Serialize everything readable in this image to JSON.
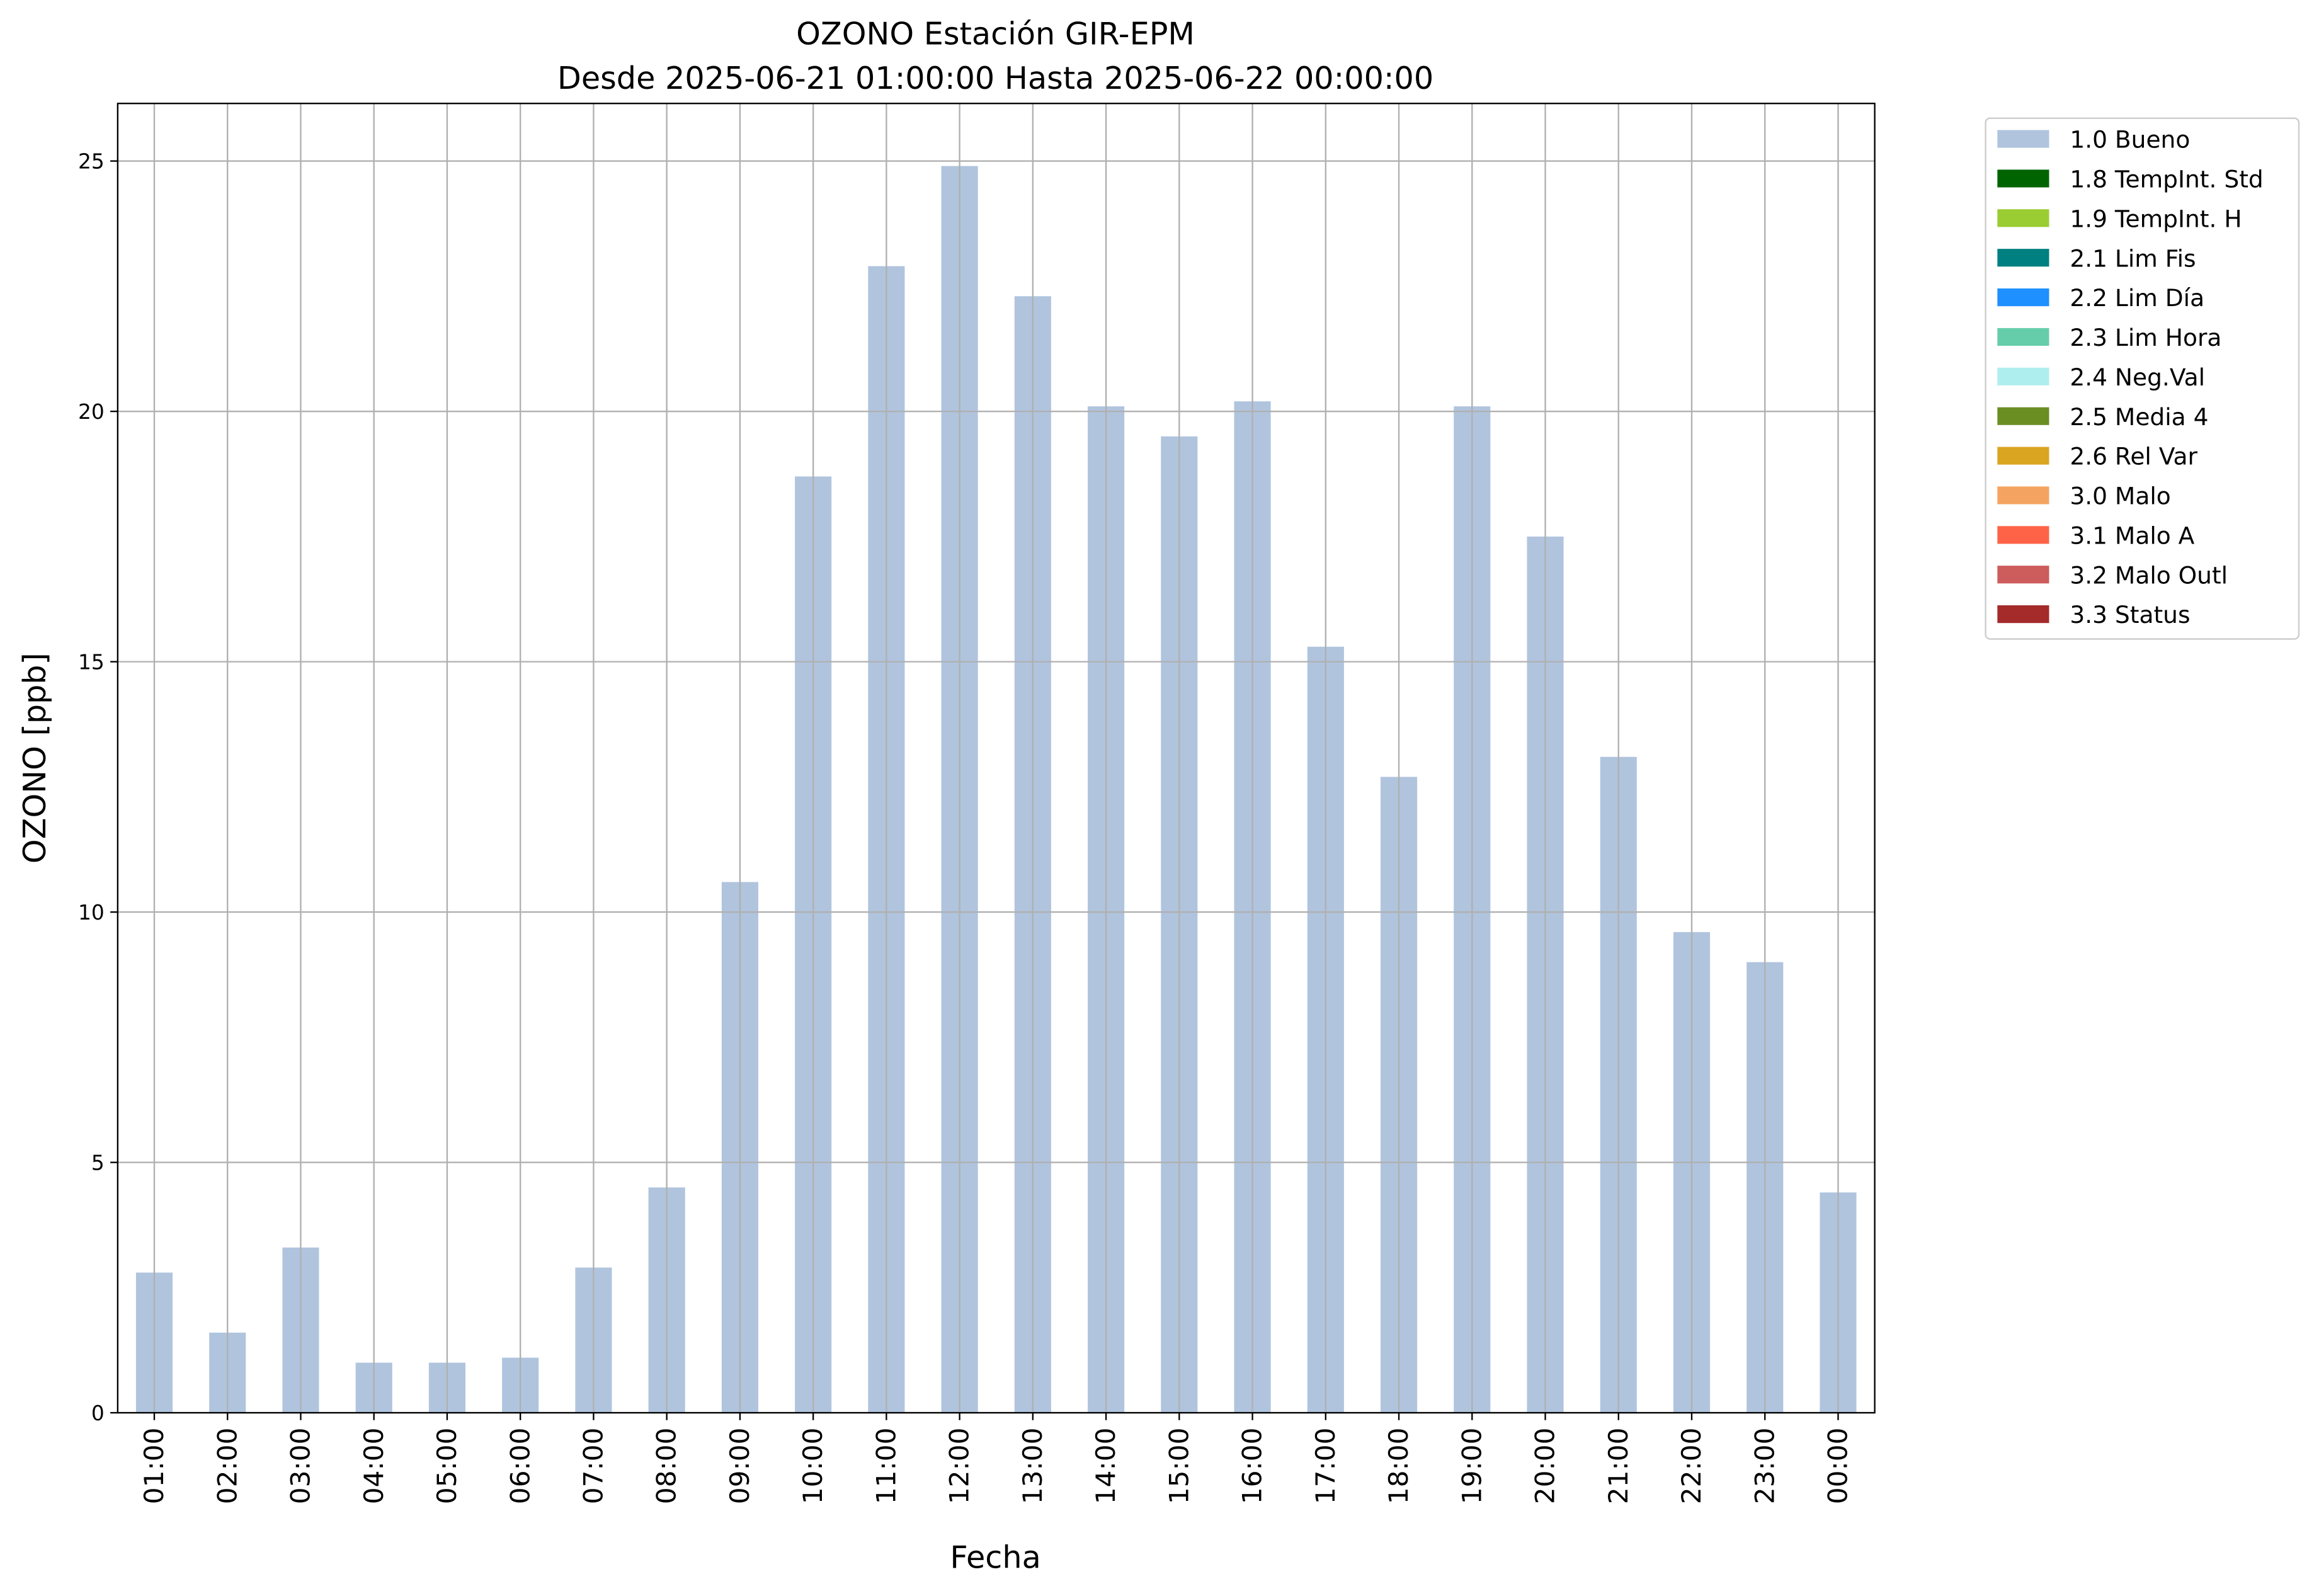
{
  "chart_data": {
    "type": "bar",
    "title": "OZONO Estación GIR-EPM",
    "subtitle": "Desde 2025-06-21 01:00:00 Hasta 2025-06-22 00:00:00",
    "x_label": "Fecha",
    "y_label": "OZONO [ppb]",
    "categories": [
      "01:00",
      "02:00",
      "03:00",
      "04:00",
      "05:00",
      "06:00",
      "07:00",
      "08:00",
      "09:00",
      "10:00",
      "11:00",
      "12:00",
      "13:00",
      "14:00",
      "15:00",
      "16:00",
      "17:00",
      "18:00",
      "19:00",
      "20:00",
      "21:00",
      "22:00",
      "23:00",
      "00:00"
    ],
    "series": [
      {
        "name": "1.0 Bueno",
        "color": "#b0c4de",
        "values": [
          2.8,
          1.6,
          3.3,
          1.0,
          1.0,
          1.1,
          2.9,
          4.5,
          10.6,
          18.7,
          22.9,
          24.9,
          22.3,
          20.1,
          19.5,
          20.2,
          15.3,
          12.7,
          20.1,
          17.5,
          13.1,
          9.6,
          9.0,
          4.4
        ]
      }
    ],
    "legend_entries": [
      {
        "name": "1.8 TempInt. Std",
        "color": "#006400"
      },
      {
        "name": "1.9 TempInt. H",
        "color": "#9acd32"
      },
      {
        "name": "2.1 Lim Fis",
        "color": "#008080"
      },
      {
        "name": "2.2 Lim Día",
        "color": "#1e90ff"
      },
      {
        "name": "2.3 Lim Hora",
        "color": "#66cdaa"
      },
      {
        "name": "2.4 Neg.Val",
        "color": "#afeeee"
      },
      {
        "name": "2.5 Media 4",
        "color": "#6b8e23"
      },
      {
        "name": "2.6 Rel Var",
        "color": "#daa520"
      },
      {
        "name": "3.0 Malo",
        "color": "#f4a460"
      },
      {
        "name": "3.1 Malo A",
        "color": "#ff6347"
      },
      {
        "name": "3.2 Malo Outl",
        "color": "#cd5c5c"
      },
      {
        "name": "3.3 Status",
        "color": "#a52a2a"
      }
    ],
    "ylim": [
      0,
      26.15
    ],
    "yticks": [
      0,
      5,
      10,
      15,
      20,
      25
    ],
    "grid": true,
    "legend_position": "outside upper right"
  }
}
